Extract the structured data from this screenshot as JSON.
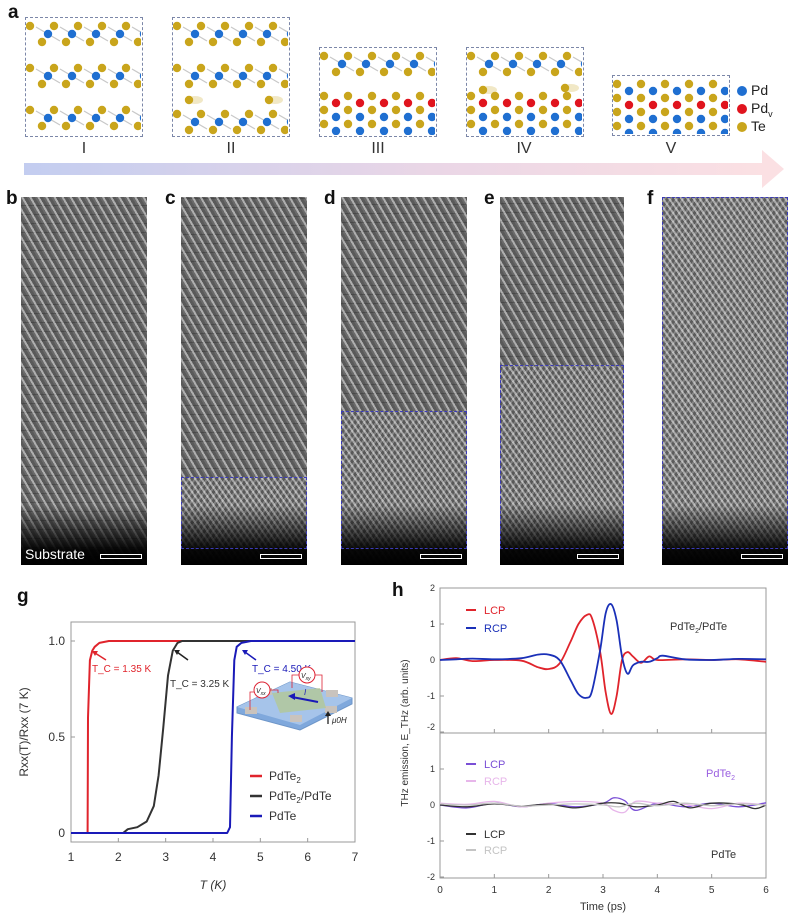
{
  "panel_labels": {
    "a": "a",
    "b": "b",
    "c": "c",
    "d": "d",
    "e": "e",
    "f": "f",
    "g": "g",
    "h": "h"
  },
  "panel_a": {
    "stages": [
      "I",
      "II",
      "III",
      "IV",
      "V"
    ],
    "legend": [
      {
        "label": "Pd",
        "sub": "",
        "color": "#1f6fd1"
      },
      {
        "label": "Pd",
        "sub": "v",
        "color": "#e0141e"
      },
      {
        "label": "Te",
        "sub": "",
        "color": "#c9a51c"
      }
    ]
  },
  "panel_b": {
    "annotation": "Substrate"
  },
  "colors": {
    "pdte2": "#e0242c",
    "hetero": "#333333",
    "pdte": "#1a1ab8",
    "lcp_top": "#e0242c",
    "rcp_top": "#1a30b8",
    "lcp_mid": "#7a4fd6",
    "rcp_mid": "#e7b6ea",
    "lcp_bot": "#333333",
    "rcp_bot": "#c4c4c4"
  },
  "chart_data": [
    {
      "type": "line",
      "title": "",
      "xlabel": "T (K)",
      "ylabel": "Rxx(T)/Rxx (7 K)",
      "xlim": [
        1,
        7
      ],
      "ylim": [
        -0.1,
        1.1
      ],
      "xticks": [
        "1",
        "2",
        "3",
        "4",
        "5",
        "6",
        "7"
      ],
      "yticks": [
        {
          "v": 0,
          "label": "0"
        },
        {
          "v": 0.5,
          "label": "0.5"
        },
        {
          "v": 1.0,
          "label": "1.0"
        }
      ],
      "legend_position": "bottom-right",
      "annotations": [
        {
          "text": "T_C = 1.35 K",
          "series": "PdTe2"
        },
        {
          "text": "T_C = 3.25 K",
          "series": "PdTe2/PdTe"
        },
        {
          "text": "T_C = 4.50 K",
          "series": "PdTe"
        }
      ],
      "inset_labels": {
        "vxx": "V",
        "vxx_sub": "xx",
        "vxy": "V",
        "vxy_sub": "xy",
        "current": "I",
        "field": "μ0H"
      },
      "series": [
        {
          "name": "PdTe2",
          "key": "pdte2",
          "x": [
            1.0,
            1.35,
            1.36,
            1.4,
            1.45,
            1.5,
            1.6,
            1.8,
            2.0,
            7.0
          ],
          "y": [
            0,
            0,
            0.6,
            0.9,
            0.95,
            0.97,
            0.99,
            1.0,
            1.0,
            1.0
          ]
        },
        {
          "name": "PdTe2/PdTe",
          "key": "hetero",
          "x": [
            1.0,
            2.1,
            2.2,
            2.4,
            2.6,
            2.75,
            2.85,
            2.95,
            3.05,
            3.15,
            3.25,
            3.35,
            7.0
          ],
          "y": [
            0,
            0,
            0.02,
            0.03,
            0.06,
            0.14,
            0.3,
            0.55,
            0.82,
            0.95,
            0.99,
            1.0,
            1.0
          ]
        },
        {
          "name": "PdTe",
          "key": "pdte",
          "x": [
            1.0,
            4.3,
            4.36,
            4.4,
            4.45,
            4.5,
            4.6,
            4.8,
            7.0
          ],
          "y": [
            0,
            0,
            0.03,
            0.5,
            0.9,
            0.97,
            0.99,
            1.0,
            1.0
          ]
        }
      ]
    },
    {
      "type": "line",
      "title": "",
      "xlabel": "Time (ps)",
      "ylabel": "THz emission, E_THz (arb. units)",
      "xlim": [
        0,
        6
      ],
      "ylim": [
        -2,
        2
      ],
      "xticks": [
        "0",
        "1",
        "2",
        "3",
        "4",
        "5",
        "6"
      ],
      "yticks_top": [
        "2",
        "1",
        "0",
        "-1",
        "-2"
      ],
      "yticks_bottom": [
        "1",
        "0",
        "-1",
        "-2"
      ],
      "subplots": [
        {
          "name": "PdTe2/PdTe",
          "label_main": "PdTe",
          "label_sub": "2",
          "label_tail": "/PdTe",
          "series": [
            {
              "name": "LCP",
              "key": "lcp_top",
              "x": [
                0,
                0.3,
                0.6,
                1.0,
                1.5,
                1.8,
                2.0,
                2.2,
                2.4,
                2.55,
                2.7,
                2.8,
                2.95,
                3.05,
                3.15,
                3.25,
                3.35,
                3.45,
                3.55,
                3.7,
                3.85,
                4.0,
                4.5,
                5.0,
                5.5,
                6.0
              ],
              "y": [
                0,
                0.05,
                -0.03,
                0,
                -0.02,
                -0.2,
                -0.25,
                -0.1,
                0.5,
                1.0,
                1.25,
                1.15,
                0.2,
                -0.9,
                -1.5,
                -1.0,
                0.0,
                0.22,
                0.1,
                -0.08,
                0.1,
                0.0,
                0.02,
                0.0,
                0.02,
                -0.05
              ]
            },
            {
              "name": "RCP",
              "key": "rcp_top",
              "x": [
                0,
                0.3,
                0.6,
                1.0,
                1.5,
                1.8,
                2.0,
                2.2,
                2.4,
                2.55,
                2.7,
                2.8,
                2.95,
                3.05,
                3.15,
                3.25,
                3.35,
                3.45,
                3.55,
                3.7,
                3.85,
                4.0,
                4.1,
                4.5,
                5.0,
                5.5,
                6.0
              ],
              "y": [
                0,
                0.02,
                0.04,
                0.02,
                0.05,
                0.15,
                0.15,
                0.0,
                -0.55,
                -0.95,
                -1.05,
                -0.85,
                0.3,
                1.3,
                1.55,
                1.1,
                0.1,
                -0.38,
                -0.15,
                -0.05,
                -0.05,
                0.05,
                0.12,
                0.02,
                0.0,
                0.03,
                0.02
              ]
            }
          ]
        },
        {
          "name": "PdTe2",
          "label_main": "PdTe",
          "label_sub": "2",
          "label_tail": "",
          "series": [
            {
              "name": "LCP",
              "key": "lcp_mid",
              "x": [
                0,
                0.5,
                1.0,
                1.5,
                2.0,
                2.5,
                3.0,
                3.2,
                3.4,
                3.6,
                4.0,
                4.5,
                5.0,
                5.5,
                6.0
              ],
              "y": [
                0,
                -0.08,
                0.05,
                -0.05,
                0.04,
                -0.05,
                0.05,
                0.2,
                0.12,
                -0.15,
                0.05,
                -0.05,
                0.05,
                -0.05,
                0.06
              ]
            },
            {
              "name": "RCP",
              "key": "rcp_mid",
              "x": [
                0,
                0.5,
                1.0,
                1.5,
                2.0,
                2.5,
                3.0,
                3.2,
                3.4,
                3.6,
                4.0,
                4.5,
                5.0,
                5.5,
                6.0
              ],
              "y": [
                0.05,
                0.02,
                0.1,
                -0.05,
                0.05,
                0.1,
                0.05,
                -0.15,
                -0.2,
                0.1,
                0.05,
                0.02,
                -0.1,
                0.05,
                0.0
              ]
            }
          ]
        },
        {
          "name": "PdTe",
          "label_main": "PdTe",
          "label_sub": "",
          "label_tail": "",
          "series": [
            {
              "name": "LCP",
              "key": "lcp_bot",
              "x": [
                0,
                0.5,
                1.0,
                1.5,
                2.0,
                2.5,
                3.0,
                3.3,
                3.6,
                4.0,
                4.3,
                4.6,
                5.0,
                5.5,
                5.8,
                6.0
              ],
              "y": [
                0,
                -0.05,
                0.03,
                -0.03,
                0.02,
                -0.08,
                0.05,
                0.05,
                -0.05,
                0.0,
                0.1,
                -0.08,
                0.05,
                0.02,
                -0.1,
                0.0
              ]
            },
            {
              "name": "RCP",
              "key": "rcp_bot",
              "x": [
                0,
                0.5,
                1.0,
                1.5,
                2.0,
                2.5,
                3.0,
                3.3,
                3.6,
                4.0,
                4.5,
                5.0,
                5.5,
                6.0
              ],
              "y": [
                0.03,
                0.0,
                0.05,
                -0.03,
                0.0,
                0.03,
                0.0,
                -0.05,
                0.05,
                -0.02,
                0.05,
                -0.02,
                0.03,
                0.0
              ]
            }
          ]
        }
      ]
    }
  ]
}
